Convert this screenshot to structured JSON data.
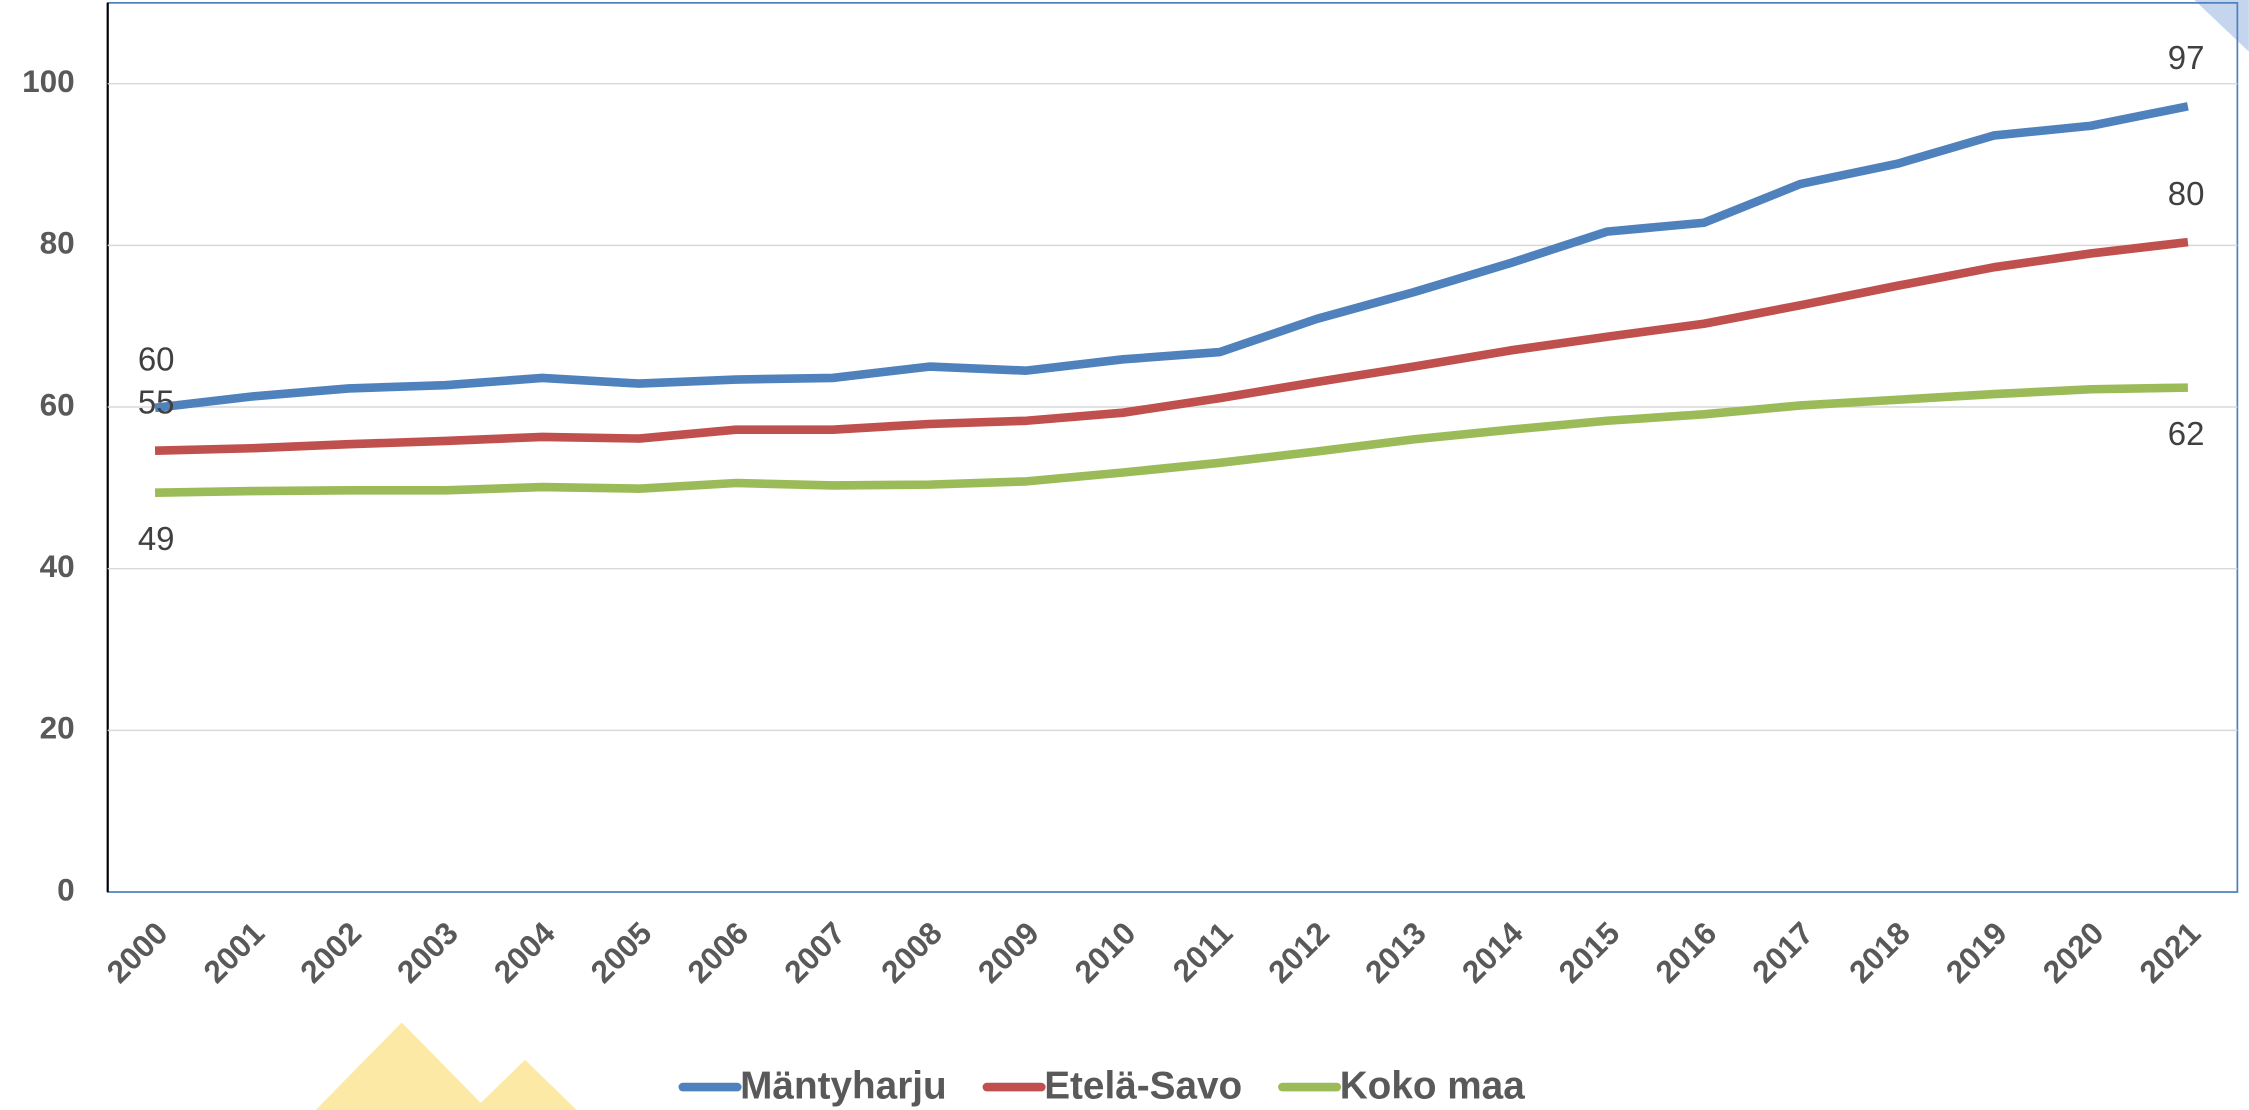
{
  "chart_data": {
    "type": "line",
    "categories": [
      "2000",
      "2001",
      "2002",
      "2003",
      "2004",
      "2005",
      "2006",
      "2007",
      "2008",
      "2009",
      "2010",
      "2011",
      "2012",
      "2013",
      "2014",
      "2015",
      "2016",
      "2017",
      "2018",
      "2019",
      "2020",
      "2021"
    ],
    "series": [
      {
        "name": "Mäntyharju",
        "color": "#4f81bd",
        "values": [
          59.9,
          61.3,
          62.3,
          62.7,
          63.6,
          62.9,
          63.4,
          63.6,
          65.0,
          64.5,
          65.9,
          66.8,
          70.9,
          74.2,
          77.8,
          81.7,
          82.8,
          87.6,
          90.1,
          93.6,
          94.8,
          97.2
        ],
        "value_labels": [
          "60",
          null,
          null,
          null,
          null,
          null,
          null,
          null,
          null,
          null,
          null,
          null,
          null,
          null,
          null,
          null,
          null,
          null,
          null,
          null,
          null,
          "97"
        ]
      },
      {
        "name": "Etelä-Savo",
        "color": "#c0504d",
        "values": [
          54.6,
          54.9,
          55.4,
          55.8,
          56.3,
          56.1,
          57.2,
          57.2,
          57.9,
          58.3,
          59.3,
          61.1,
          63.1,
          65.0,
          67.0,
          68.7,
          70.3,
          72.6,
          75.0,
          77.3,
          79.0,
          80.4
        ],
        "value_labels": [
          "55",
          null,
          null,
          null,
          null,
          null,
          null,
          null,
          null,
          null,
          null,
          null,
          null,
          null,
          null,
          null,
          null,
          null,
          null,
          null,
          null,
          "80"
        ]
      },
      {
        "name": "Koko maa",
        "color": "#9bbb59",
        "values": [
          49.4,
          49.6,
          49.7,
          49.7,
          50.1,
          49.9,
          50.6,
          50.3,
          50.4,
          50.8,
          51.9,
          53.1,
          54.5,
          56.0,
          57.2,
          58.3,
          59.1,
          60.2,
          60.9,
          61.6,
          62.2,
          62.4
        ],
        "value_labels": [
          "49",
          null,
          null,
          null,
          null,
          null,
          null,
          null,
          null,
          null,
          null,
          null,
          null,
          null,
          null,
          null,
          null,
          null,
          null,
          null,
          null,
          "62"
        ]
      }
    ],
    "ylim": [
      0,
      110
    ],
    "yticks": [
      0,
      20,
      40,
      60,
      80,
      100
    ],
    "grid": true,
    "legend": "bottom"
  }
}
